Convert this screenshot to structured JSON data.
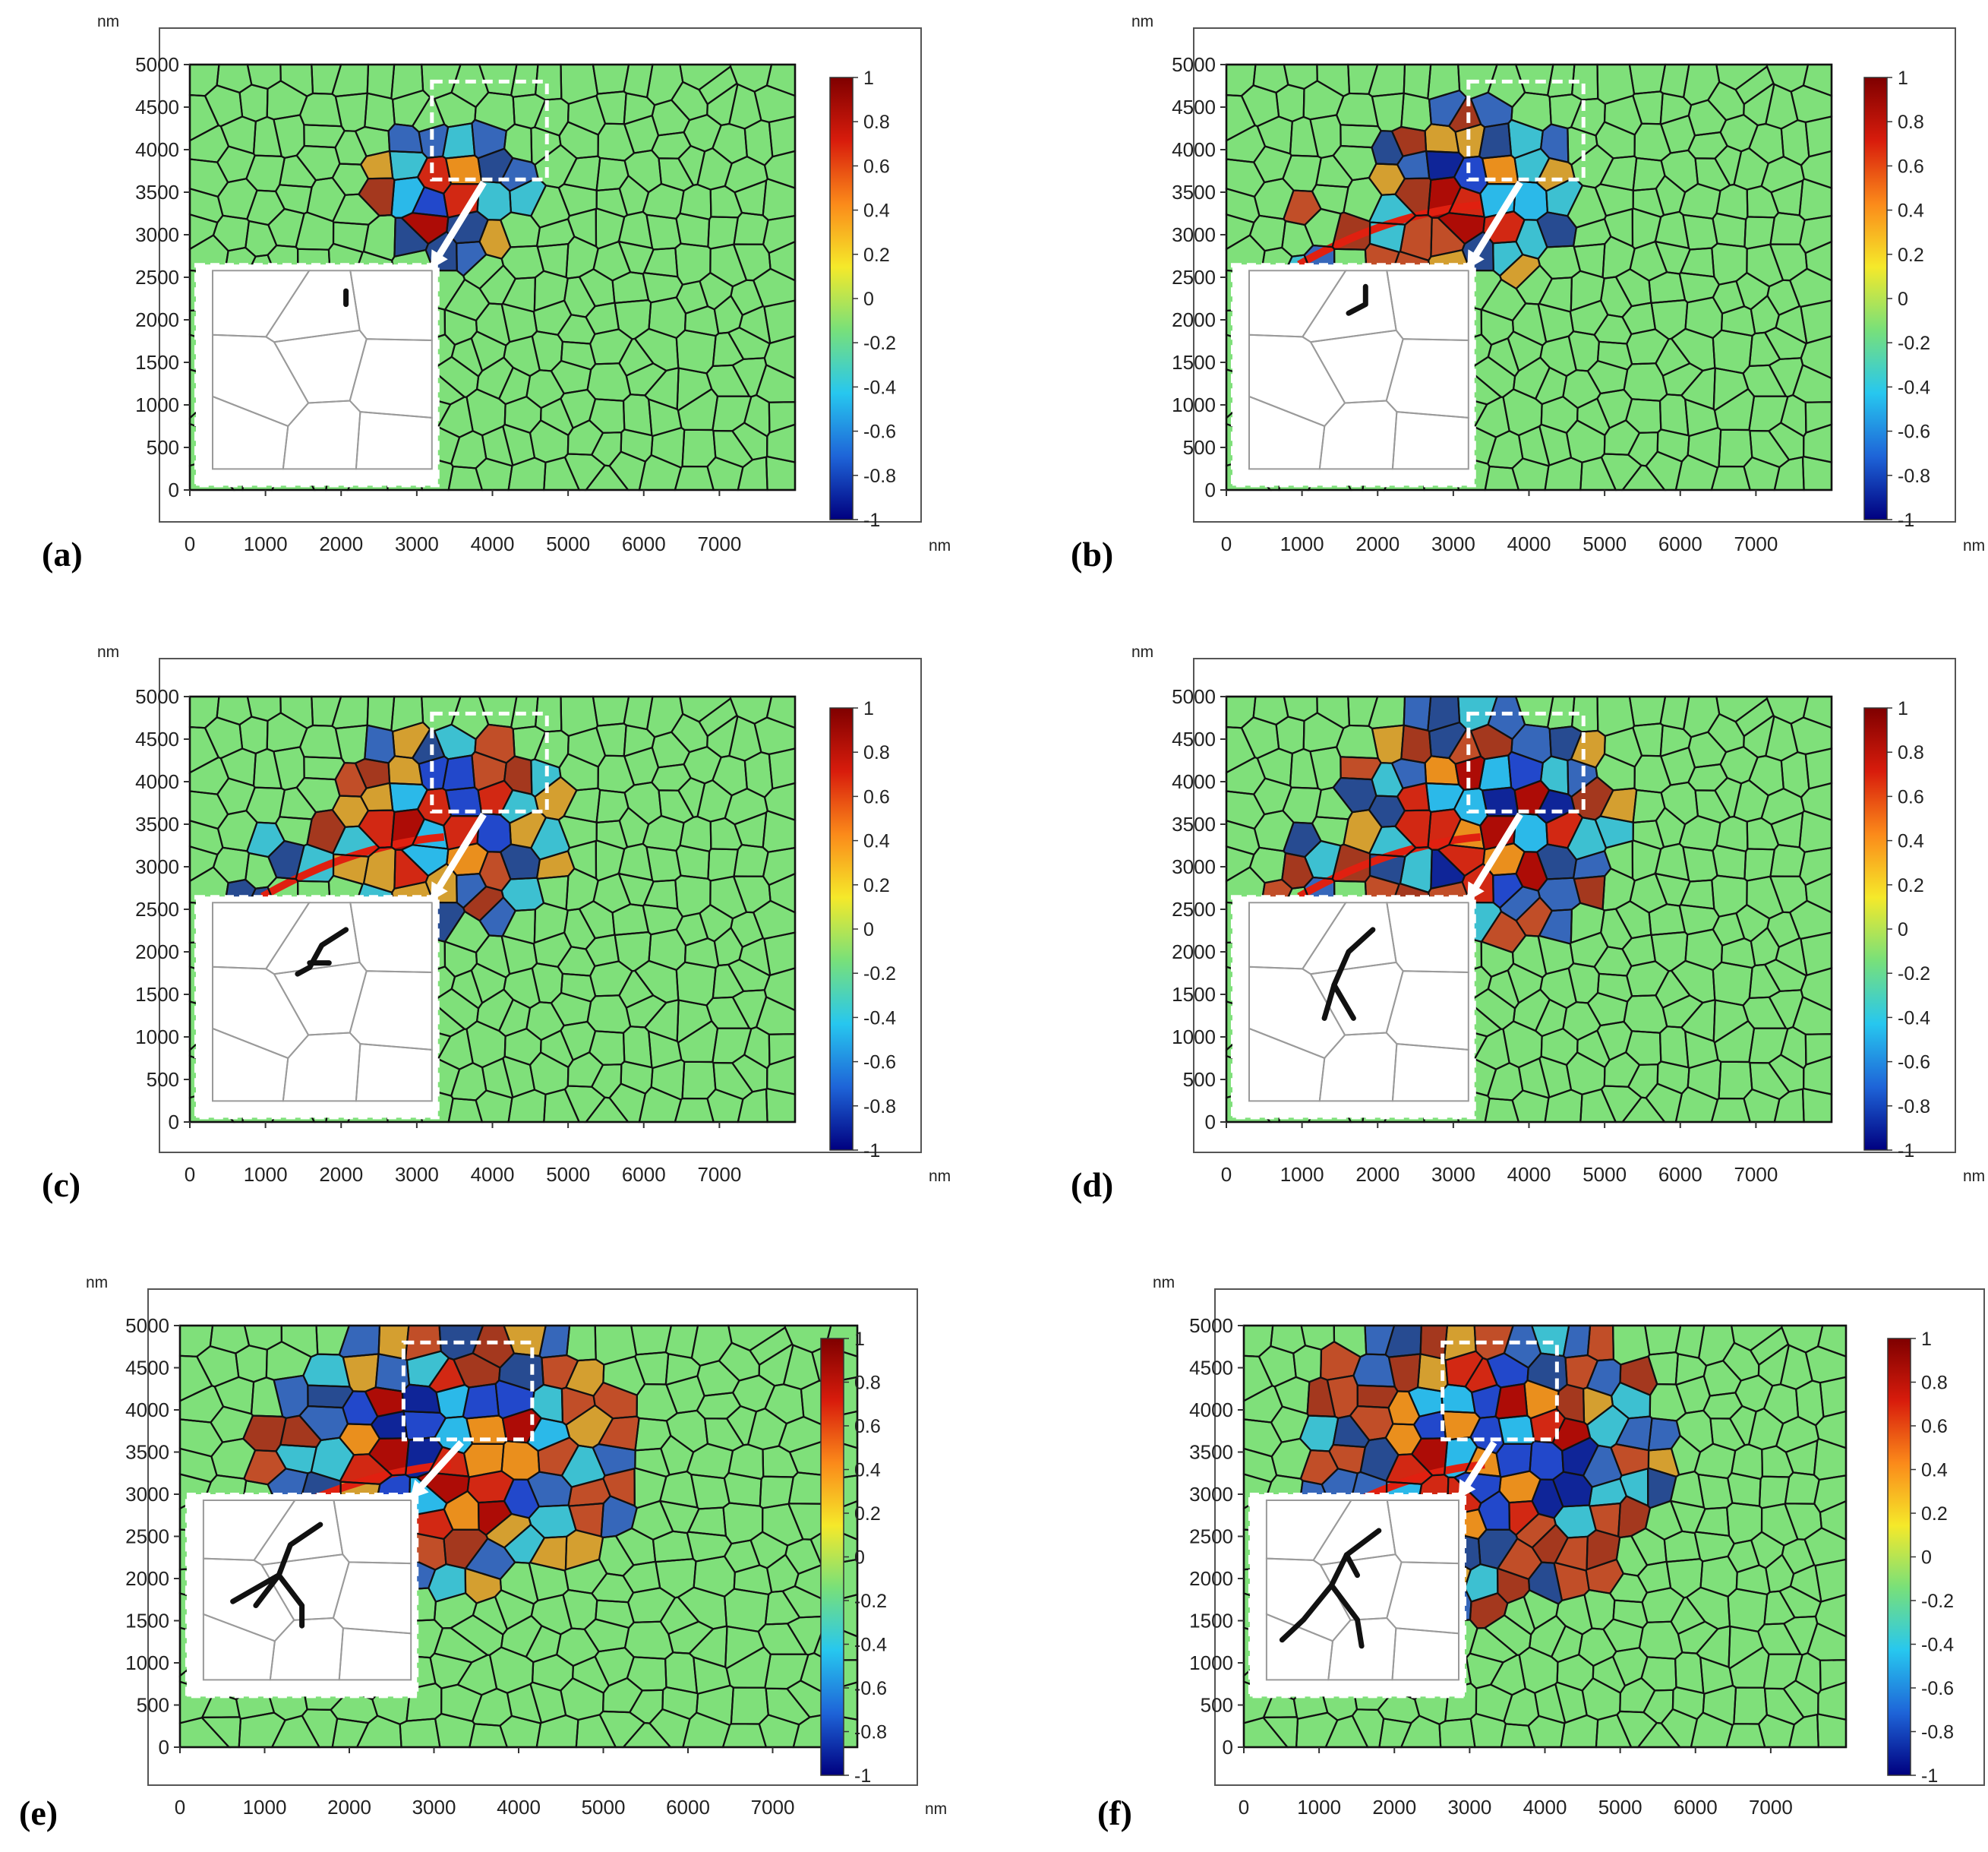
{
  "figure": {
    "colors": {
      "domain_fill": "#7fe07a",
      "grain_edge": "#111111",
      "inset_bg": "#ffffff",
      "inset_edge": "#9a9a9a",
      "crack": "#111111",
      "frame": "#555555"
    },
    "colorbar": {
      "colors": [
        "#7f0000",
        "#d81c0c",
        "#fb8a1a",
        "#f5e92a",
        "#78e07a",
        "#27c7ef",
        "#1e64d8",
        "#00007f"
      ],
      "tick_labels": [
        "1",
        "0.8",
        "0.6",
        "0.4",
        "0.2",
        "0",
        "-0.2",
        "-0.4",
        "-0.6",
        "-0.8",
        "-1"
      ]
    },
    "x_axis": {
      "ticks": [
        "0",
        "1000",
        "2000",
        "3000",
        "4000",
        "5000",
        "6000",
        "7000"
      ],
      "unit": "nm"
    },
    "y_axis": {
      "ticks": [
        "5000",
        "4500",
        "4000",
        "3500",
        "3000",
        "2500",
        "2000",
        "1500",
        "1000",
        "500",
        "0"
      ],
      "unit": "nm"
    },
    "panels": [
      {
        "label": "(a)",
        "stage": 1
      },
      {
        "label": "(b)",
        "stage": 2
      },
      {
        "label": "(c)",
        "stage": 3
      },
      {
        "label": "(d)",
        "stage": 4
      },
      {
        "label": "(e)",
        "stage": 5
      },
      {
        "label": "(f)",
        "stage": 6
      }
    ]
  }
}
